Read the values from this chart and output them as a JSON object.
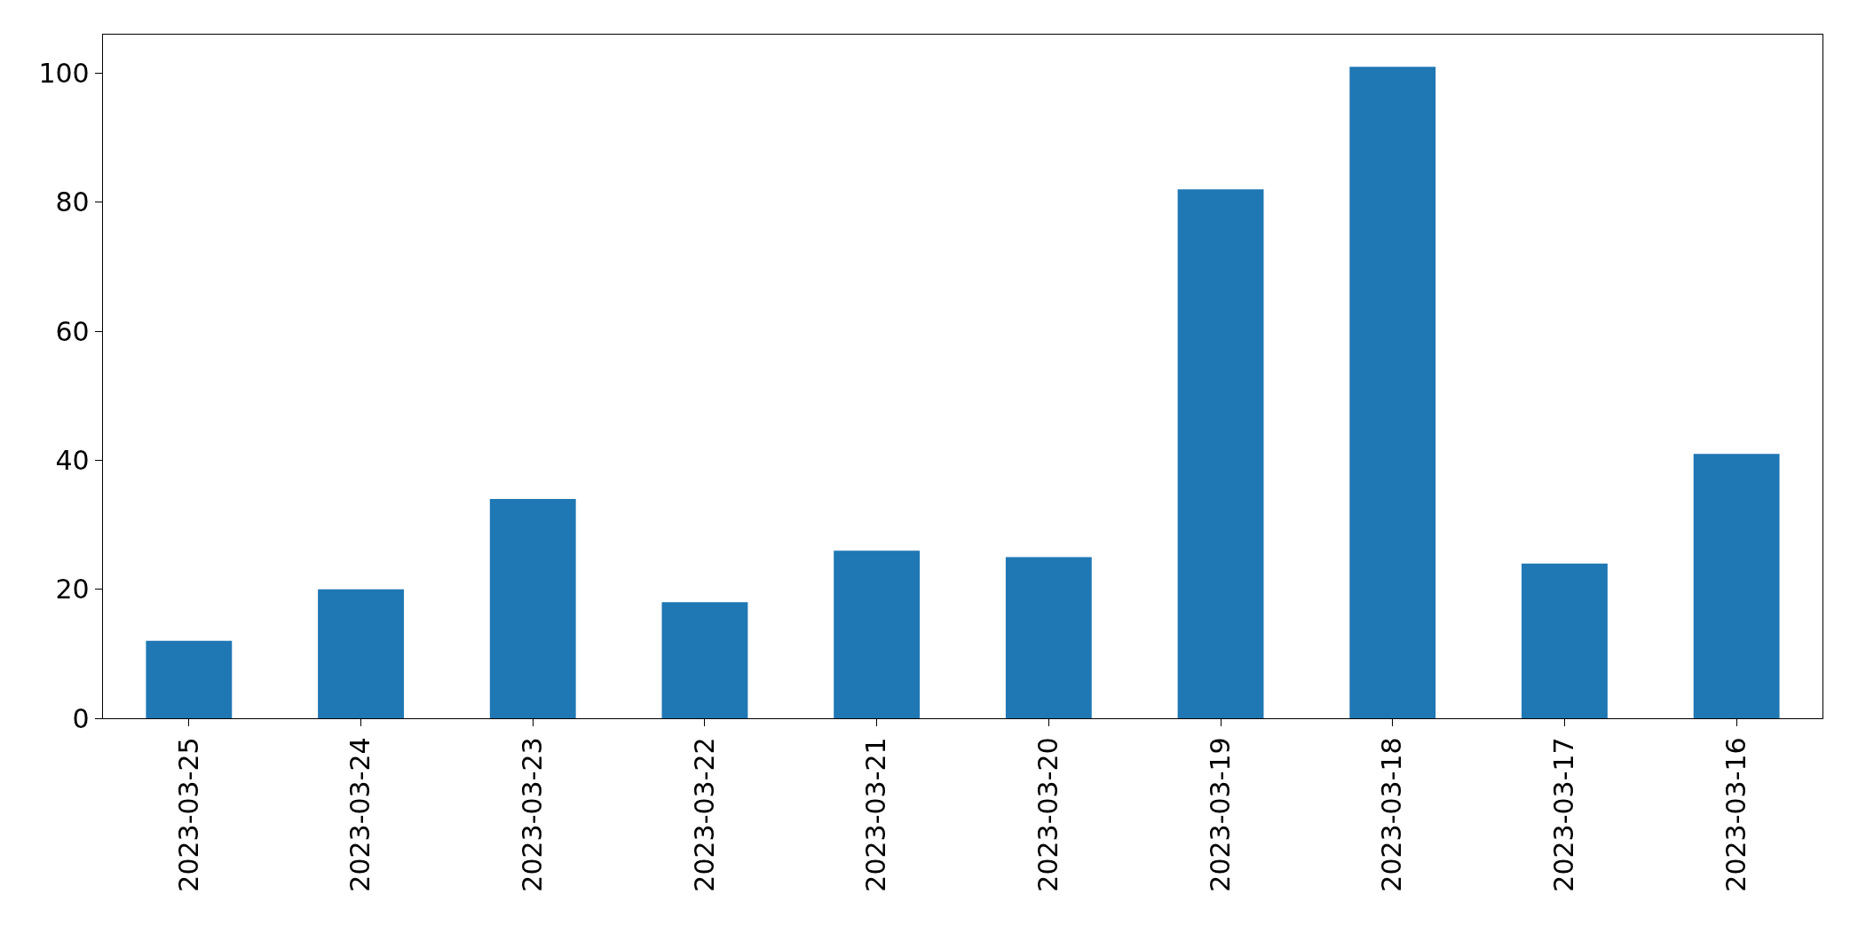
{
  "chart_data": {
    "type": "bar",
    "categories": [
      "2023-03-25",
      "2023-03-24",
      "2023-03-23",
      "2023-03-22",
      "2023-03-21",
      "2023-03-20",
      "2023-03-19",
      "2023-03-18",
      "2023-03-17",
      "2023-03-16"
    ],
    "values": [
      12,
      20,
      34,
      18,
      26,
      25,
      82,
      101,
      24,
      41
    ],
    "color": "#1f77b4",
    "ylim": [
      0,
      106
    ],
    "yticks": [
      0,
      20,
      40,
      60,
      80,
      100
    ],
    "grid": false,
    "legend": false
  }
}
